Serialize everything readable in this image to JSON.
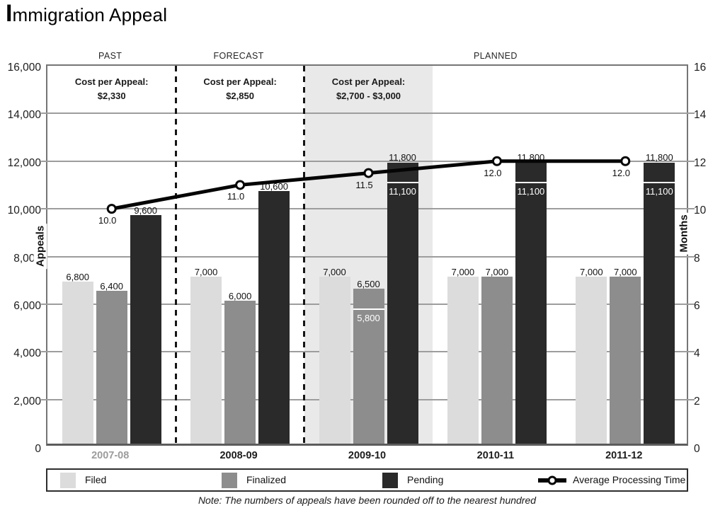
{
  "title": "Immigration Appeal",
  "chart_data": {
    "type": "bar",
    "subtype": "grouped-bars-with-line",
    "categories": [
      "2007-08",
      "2008-09",
      "2009-10",
      "2010-11",
      "2011-12"
    ],
    "muted_category_index": 0,
    "sections": [
      {
        "label": "PAST",
        "cost_line1": "Cost per Appeal:",
        "cost_line2": "$2,330",
        "span": [
          0,
          1
        ],
        "cost_span": [
          0,
          1
        ],
        "shaded": false
      },
      {
        "label": "FORECAST",
        "cost_line1": "Cost per Appeal:",
        "cost_line2": "$2,850",
        "span": [
          1,
          2
        ],
        "cost_span": [
          1,
          2
        ],
        "shaded": false
      },
      {
        "label": "PLANNED",
        "cost_line1": "Cost per Appeal:",
        "cost_line2": "$2,700 - $3,000",
        "span": [
          2,
          5
        ],
        "cost_span": [
          2,
          3
        ],
        "shaded": true
      }
    ],
    "series": [
      {
        "name": "Filed",
        "color": "#dcdcdc",
        "values": [
          6800,
          7000,
          7000,
          7000,
          7000
        ],
        "labels": [
          "6,800",
          "7,000",
          "7,000",
          "7,000",
          "7,000"
        ],
        "inner_marks": [
          null,
          null,
          null,
          null,
          null
        ]
      },
      {
        "name": "Finalized",
        "color": "#8d8d8d",
        "values": [
          6400,
          6000,
          6500,
          7000,
          7000
        ],
        "labels": [
          "6,400",
          "6,000",
          "6,500",
          "7,000",
          "7,000"
        ],
        "inner_marks": [
          null,
          null,
          {
            "value": 5800,
            "label": "5,800"
          },
          null,
          null
        ]
      },
      {
        "name": "Pending",
        "color": "#2a2a2a",
        "values": [
          9600,
          10600,
          11800,
          11800,
          11800
        ],
        "labels": [
          "9,600",
          "10,600",
          "11,800",
          "11,800",
          "11,800"
        ],
        "inner_marks": [
          null,
          null,
          {
            "value": 11100,
            "label": "11,100"
          },
          {
            "value": 11100,
            "label": "11,100"
          },
          {
            "value": 11100,
            "label": "11,100"
          }
        ]
      }
    ],
    "line_series": {
      "name": "Average Processing Time",
      "color": "#050505",
      "values": [
        10.0,
        11.0,
        11.5,
        12.0,
        12.0
      ],
      "labels": [
        "10.0",
        "11.0",
        "11.5",
        "12.0",
        "12.0"
      ]
    },
    "axis_left": {
      "title": "Appeals",
      "min": 0,
      "max": 16000,
      "step": 2000,
      "tick_labels": [
        "0",
        "2,000",
        "4,000",
        "6,000",
        "8,000",
        "10,000",
        "12,000",
        "14,000",
        "16,000"
      ]
    },
    "axis_right": {
      "title": "Months",
      "min": 0,
      "max": 16,
      "step": 2,
      "tick_labels": [
        "0",
        "2",
        "4",
        "6",
        "8",
        "10",
        "12",
        "14",
        "16"
      ]
    },
    "legend": [
      "Filed",
      "Finalized",
      "Pending",
      "Average Processing Time"
    ],
    "note": "Note: The numbers of appeals have been rounded off to the nearest hundred",
    "muted_label_color": "#9c9c9c",
    "category_label_color": "#1c1c1c"
  }
}
